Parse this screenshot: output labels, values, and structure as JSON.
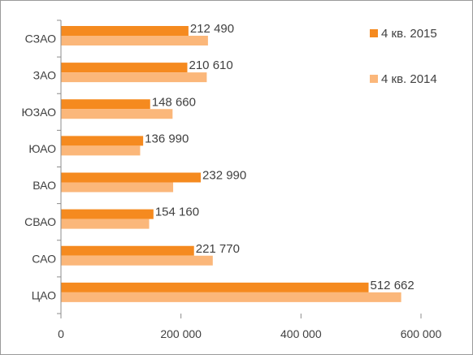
{
  "chart_data": {
    "type": "bar",
    "orientation": "horizontal",
    "categories": [
      "СЗАО",
      "ЗАО",
      "ЮЗАО",
      "ЮАО",
      "ВАО",
      "СВАО",
      "САО",
      "ЦАО"
    ],
    "series": [
      {
        "name": "4 кв. 2015",
        "color": "#f58a1f",
        "values": [
          212490,
          210610,
          148660,
          136990,
          232990,
          154160,
          221770,
          512662
        ],
        "data_labels": [
          "212 490",
          "210 610",
          "148 660",
          "136 990",
          "232 990",
          "154 160",
          "221 770",
          "512 662"
        ]
      },
      {
        "name": "4 кв. 2014",
        "color": "#fbb77a",
        "values": [
          245000,
          243000,
          186000,
          132000,
          187000,
          147000,
          253000,
          567000
        ]
      }
    ],
    "x_ticks": [
      0,
      200000,
      400000,
      600000
    ],
    "x_tick_labels": [
      "0",
      "200 000",
      "400 000",
      "600 000"
    ],
    "xlim": [
      0,
      600000
    ],
    "grid": false,
    "legend_position": "top-right"
  }
}
